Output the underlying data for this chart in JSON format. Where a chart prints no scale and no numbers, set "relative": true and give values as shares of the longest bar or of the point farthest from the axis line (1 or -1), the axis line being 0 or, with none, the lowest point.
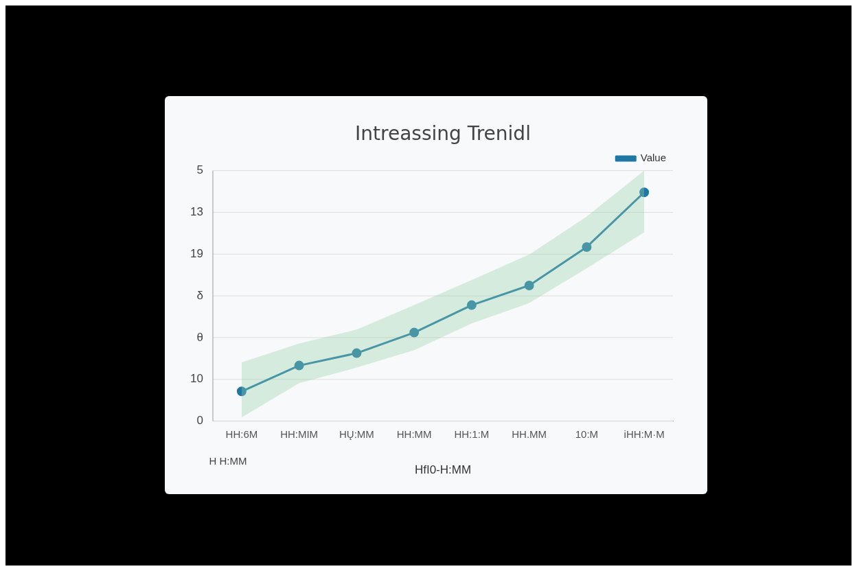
{
  "chart_data": {
    "type": "line",
    "title": "Intreassing Trenidl",
    "xlabel": "HfI0-H:MM",
    "categories": [
      "HH:6M",
      "HH:MIM",
      "HŲ:MM",
      "HH:MM",
      "HH:1:M",
      "HH.MM",
      "10:M",
      "iHH:M·M"
    ],
    "series": [
      {
        "name": "Value",
        "color": "#1f77a4",
        "values": [
          0.13,
          0.243,
          0.297,
          0.387,
          0.507,
          0.593,
          0.761,
          1
        ],
        "lower": [
          0.016,
          0.166,
          0.234,
          0.31,
          0.427,
          0.516,
          0.668,
          0.825
        ],
        "upper": [
          0.257,
          0.339,
          0.4,
          0.507,
          0.617,
          0.728,
          0.894,
          1.095
        ]
      }
    ],
    "relative": true,
    "grid": "y",
    "legend": "top right",
    "marker": "circle",
    "line_style": "solid",
    "annotations": [
      "5",
      "13",
      "19",
      "δ",
      "θ",
      "10",
      "0",
      "H H:MM"
    ]
  }
}
